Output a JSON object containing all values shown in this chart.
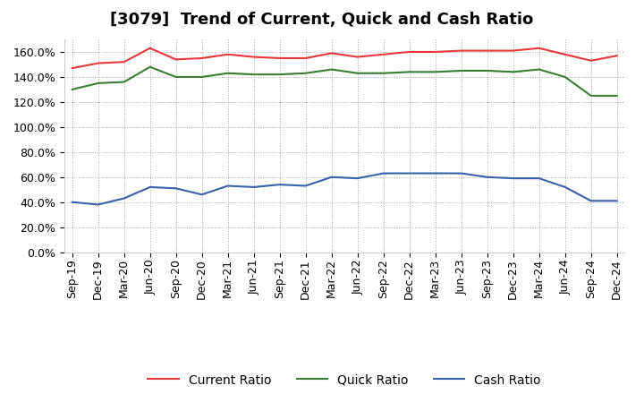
{
  "title": "[3079]  Trend of Current, Quick and Cash Ratio",
  "labels": [
    "Sep-19",
    "Dec-19",
    "Mar-20",
    "Jun-20",
    "Sep-20",
    "Dec-20",
    "Mar-21",
    "Jun-21",
    "Sep-21",
    "Dec-21",
    "Mar-22",
    "Jun-22",
    "Sep-22",
    "Dec-22",
    "Mar-23",
    "Jun-23",
    "Sep-23",
    "Dec-23",
    "Mar-24",
    "Jun-24",
    "Sep-24",
    "Dec-24"
  ],
  "current_ratio": [
    147,
    151,
    152,
    163,
    154,
    155,
    158,
    156,
    155,
    155,
    159,
    156,
    158,
    160,
    160,
    161,
    161,
    161,
    163,
    158,
    153,
    157
  ],
  "quick_ratio": [
    130,
    135,
    136,
    148,
    140,
    140,
    143,
    142,
    142,
    143,
    146,
    143,
    143,
    144,
    144,
    145,
    145,
    144,
    146,
    140,
    125,
    125
  ],
  "cash_ratio": [
    40,
    38,
    43,
    52,
    51,
    46,
    53,
    52,
    54,
    53,
    60,
    59,
    63,
    63,
    63,
    63,
    60,
    59,
    59,
    52,
    41,
    41
  ],
  "current_color": "#e8373b",
  "quick_color": "#3a7d34",
  "cash_color": "#3b5fa8",
  "ylim": [
    0,
    170
  ],
  "yticks": [
    0,
    20,
    40,
    60,
    80,
    100,
    120,
    140,
    160
  ],
  "background_color": "#ffffff",
  "grid_color": "#aaaaaa",
  "title_fontsize": 13,
  "tick_fontsize": 9,
  "legend_fontsize": 10
}
